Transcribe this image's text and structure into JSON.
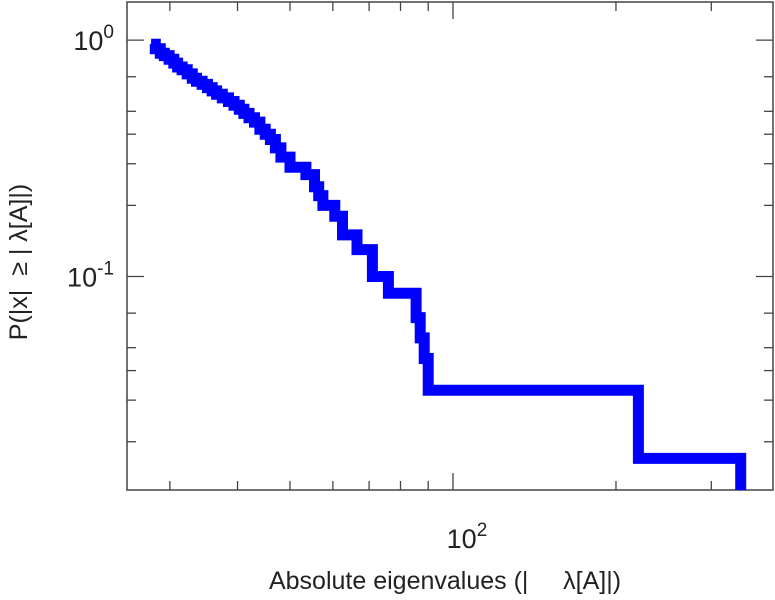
{
  "chart_data": {
    "type": "line",
    "title": "",
    "xlabel": "Absolute eigenvalues (|     λ[A]|)",
    "ylabel": "P(|x|  ≥ | λ[A]|)",
    "x_scale": "log",
    "y_scale": "log",
    "xlim": [
      25,
      390
    ],
    "ylim": [
      0.0125,
      1.45
    ],
    "grid": false,
    "legend": "none",
    "color": "#0000ff",
    "x_major_ticks": [
      {
        "value": 100,
        "base": "10",
        "exp": "2"
      }
    ],
    "y_major_ticks": [
      {
        "value": 1,
        "base": "10",
        "exp": "0"
      },
      {
        "value": 0.1,
        "base": "10",
        "exp": "-1"
      }
    ],
    "x_minor_ticks": [
      30,
      40,
      50,
      60,
      70,
      80,
      90,
      200,
      300
    ],
    "y_minor_ticks": [
      0.7,
      0.5,
      0.4,
      0.3,
      0.2,
      0.07,
      0.05,
      0.04,
      0.03,
      0.02
    ],
    "series": [
      {
        "x": [
          27.7,
          28.2,
          28.8,
          29.3,
          29.9,
          30.5,
          31.0,
          31.6,
          32.3,
          33.0,
          33.6,
          34.4,
          35.2,
          35.9,
          36.6,
          37.5,
          38.5,
          39.4,
          40.3,
          41.1,
          42.0,
          43.0,
          44.0,
          45.0,
          46.0,
          47.0,
          48.1,
          49.0,
          50.0,
          51.5,
          53.5,
          55.5,
          56.5,
          57.5,
          58.7,
          60.5,
          62.5,
          64.5,
          66.5,
          71.0,
          76.0,
          84.0,
          85.5,
          87.0,
          88.5,
          90.0,
          95.0,
          120.0,
          160.0,
          205.0,
          220.0,
          310.0,
          340.0
        ],
        "y": [
          0.96,
          0.92,
          0.88,
          0.86,
          0.83,
          0.8,
          0.77,
          0.75,
          0.72,
          0.69,
          0.67,
          0.65,
          0.63,
          0.61,
          0.59,
          0.57,
          0.55,
          0.53,
          0.51,
          0.49,
          0.47,
          0.45,
          0.42,
          0.4,
          0.38,
          0.35,
          0.32,
          0.32,
          0.29,
          0.29,
          0.27,
          0.24,
          0.22,
          0.2,
          0.2,
          0.18,
          0.15,
          0.15,
          0.13,
          0.1,
          0.085,
          0.085,
          0.067,
          0.055,
          0.045,
          0.033,
          0.033,
          0.033,
          0.033,
          0.033,
          0.017,
          0.017,
          0.0125
        ]
      }
    ]
  }
}
